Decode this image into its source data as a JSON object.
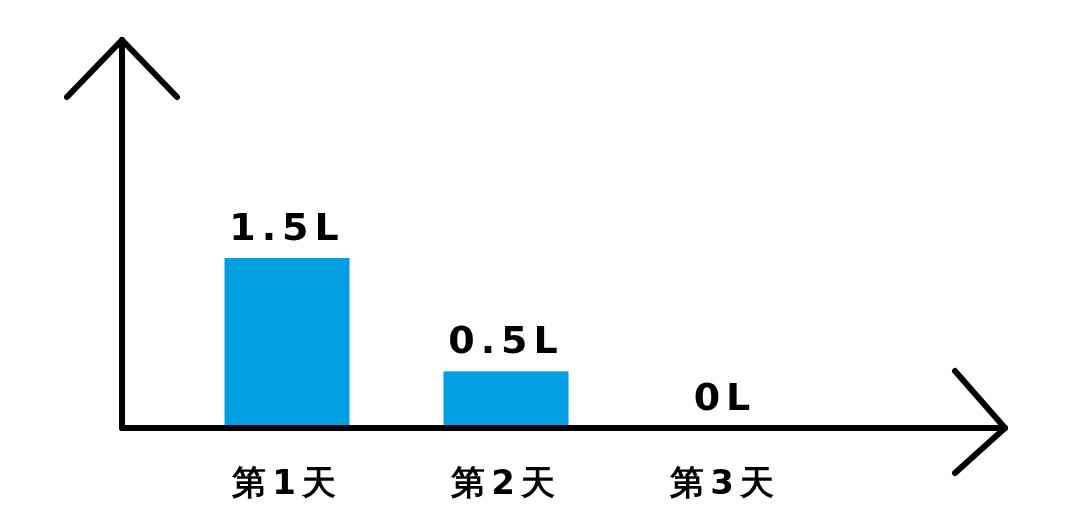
{
  "chart_data": {
    "type": "bar",
    "categories": [
      "第1天",
      "第2天",
      "第3天"
    ],
    "values": [
      1.5,
      0.5,
      0
    ],
    "value_labels": [
      "1.5L",
      "0.5L",
      "0L"
    ],
    "color": "#029fe3"
  }
}
